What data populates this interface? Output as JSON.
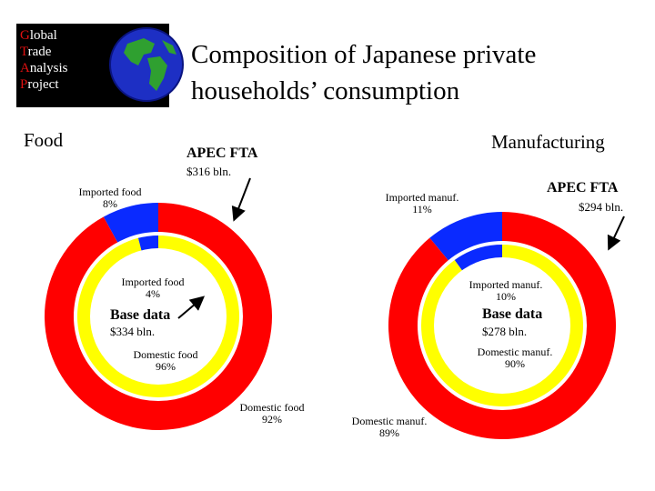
{
  "logo": {
    "lines": [
      {
        "first": "G",
        "rest": "lobal"
      },
      {
        "first": "T",
        "rest": "rade"
      },
      {
        "first": "A",
        "rest": "nalysis"
      },
      {
        "first": "P",
        "rest": "roject"
      }
    ]
  },
  "title": "Composition of Japanese private households’ consumption",
  "colors": {
    "red": "#ff0000",
    "yellow": "#ffff00",
    "blue": "#0a2aff"
  },
  "chart_data": [
    {
      "type": "pie",
      "section": "Food",
      "outer": {
        "label": "APEC FTA",
        "total": "$316 bln.",
        "slices": [
          {
            "label": "Imported food",
            "value": 8,
            "text": "8%"
          },
          {
            "label": "Domestic food",
            "value": 92,
            "text": "92%"
          }
        ]
      },
      "inner": {
        "label": "Base data",
        "total": "$334 bln.",
        "slices": [
          {
            "label": "Imported food",
            "value": 4,
            "text": "4%"
          },
          {
            "label": "Domestic food",
            "value": 96,
            "text": "96%"
          }
        ]
      }
    },
    {
      "type": "pie",
      "section": "Manufacturing",
      "outer": {
        "label": "APEC FTA",
        "total": "$294 bln.",
        "slices": [
          {
            "label": "Imported manuf.",
            "value": 11,
            "text": "11%"
          },
          {
            "label": "Domestic manuf.",
            "value": 89,
            "text": "89%"
          }
        ]
      },
      "inner": {
        "label": "Base data",
        "total": "$278 bln.",
        "slices": [
          {
            "label": "Imported manuf.",
            "value": 10,
            "text": "10%"
          },
          {
            "label": "Domestic manuf.",
            "value": 90,
            "text": "90%"
          }
        ]
      }
    }
  ]
}
